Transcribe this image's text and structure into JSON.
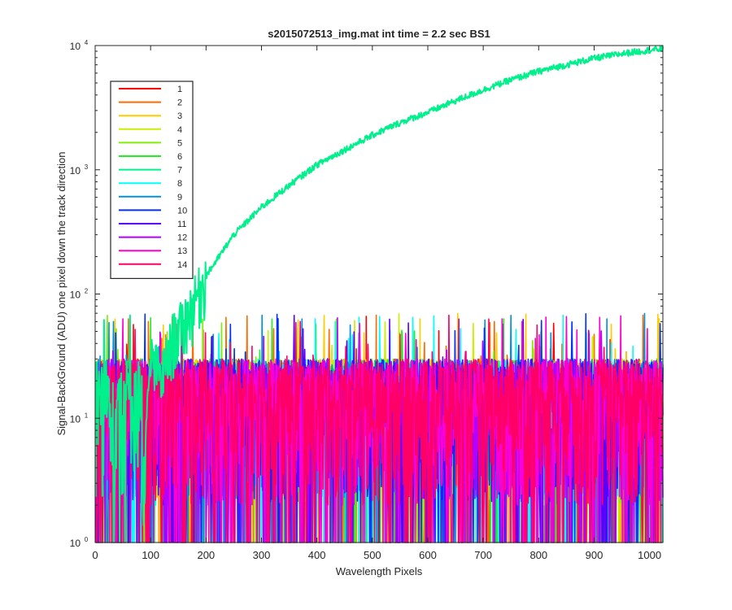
{
  "chart_data": {
    "type": "line",
    "title": "s2015072513_img.mat int time = 2.2 sec   BS1",
    "xlabel": "Wavelength Pixels",
    "ylabel": "Signal-BackGround (ADU) one pixel down the track direction",
    "xlim": [
      0,
      1024
    ],
    "ylim": [
      1,
      10000
    ],
    "yscale": "log",
    "x_ticks": [
      "0",
      "100",
      "200",
      "300",
      "400",
      "500",
      "600",
      "700",
      "800",
      "900",
      "1000"
    ],
    "y_ticks": [
      {
        "base": "10",
        "exp": "0"
      },
      {
        "base": "10",
        "exp": "1"
      },
      {
        "base": "10",
        "exp": "2"
      },
      {
        "base": "10",
        "exp": "3"
      },
      {
        "base": "10",
        "exp": "4"
      }
    ],
    "legend_position": "top-left",
    "noise_floor": {
      "typical_min": 2,
      "typical_max": 30,
      "peak_max": 70
    },
    "series": [
      {
        "name": "1",
        "color": "#ff0000"
      },
      {
        "name": "2",
        "color": "#ff6a00"
      },
      {
        "name": "3",
        "color": "#ffcc00"
      },
      {
        "name": "4",
        "color": "#ccee00"
      },
      {
        "name": "5",
        "color": "#80ee00"
      },
      {
        "name": "6",
        "color": "#22ee22"
      },
      {
        "name": "7",
        "color": "#00f08c",
        "profile": {
          "x": [
            85,
            100,
            120,
            140,
            160,
            180,
            200,
            250,
            300,
            350,
            400,
            450,
            500,
            550,
            600,
            650,
            700,
            750,
            800,
            850,
            900,
            950,
            1000,
            1024
          ],
          "y": [
            2,
            30,
            22,
            45,
            60,
            90,
            140,
            300,
            500,
            750,
            1100,
            1450,
            1900,
            2400,
            2900,
            3600,
            4400,
            5300,
            6200,
            7000,
            7900,
            8600,
            9200,
            9400
          ]
        }
      },
      {
        "name": "8",
        "color": "#00ffff"
      },
      {
        "name": "9",
        "color": "#0090e0"
      },
      {
        "name": "10",
        "color": "#0030ff"
      },
      {
        "name": "11",
        "color": "#5a00ff"
      },
      {
        "name": "12",
        "color": "#b400ff"
      },
      {
        "name": "13",
        "color": "#ff00d2"
      },
      {
        "name": "14",
        "color": "#ff0066"
      }
    ]
  }
}
